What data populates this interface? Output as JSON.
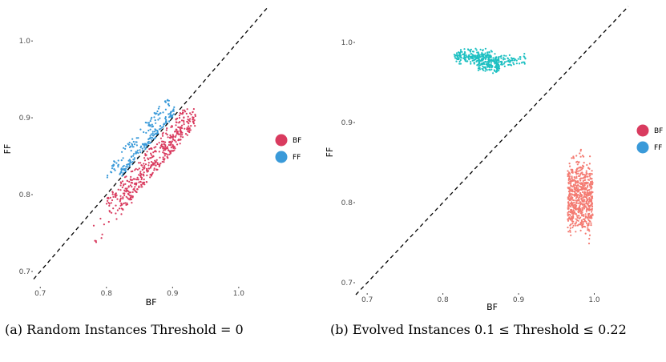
{
  "captions": {
    "a": "(a) Random Instances Threshold = 0",
    "b": "(b) Evolved Instances 0.1 ≤ Threshold ≤ 0.22"
  },
  "chart_data": [
    {
      "type": "scatter",
      "panel": "a",
      "xlabel": "BF",
      "ylabel": "FF",
      "xlim": [
        0.69,
        1.045
      ],
      "ylim": [
        0.678,
        1.045
      ],
      "xticks": [
        "0.7",
        "0.8",
        "0.9",
        "1.0"
      ],
      "yticks": [
        "0.7",
        "0.8",
        "0.9",
        "1.0"
      ],
      "reference_line": "y = x (dashed)",
      "grid": false,
      "legend": {
        "placement": "right",
        "entries": [
          {
            "label": "BF",
            "color": "#d93b5f"
          },
          {
            "label": "FF",
            "color": "#3a9ad9"
          }
        ]
      },
      "series": [
        {
          "name": "BF",
          "color": "#d93b5f",
          "pattern": "bands below diagonal",
          "clusters": [
            {
              "x": [
                0.82,
                0.935
              ],
              "y_offset": [
                -0.02,
                -0.045
              ],
              "count": 320
            },
            {
              "x": [
                0.8,
                0.925
              ],
              "y_offset": [
                -0.005,
                -0.02
              ],
              "count": 120
            },
            {
              "x": [
                0.78,
                0.84
              ],
              "y_offset": [
                -0.02,
                -0.05
              ],
              "count": 30
            }
          ]
        },
        {
          "name": "FF",
          "color": "#3a9ad9",
          "pattern": "bands along and above diagonal",
          "clusters": [
            {
              "x": [
                0.82,
                0.905
              ],
              "y_offset": [
                0.0,
                0.012
              ],
              "count": 160
            },
            {
              "x": [
                0.8,
                0.895
              ],
              "y_offset": [
                0.018,
                0.035
              ],
              "count": 90
            }
          ]
        }
      ]
    },
    {
      "type": "scatter",
      "panel": "b",
      "xlabel": "BF",
      "ylabel": "FF",
      "xlim": [
        0.685,
        1.045
      ],
      "ylim": [
        0.685,
        1.045
      ],
      "xticks": [
        "0.7",
        "0.8",
        "0.9",
        "1.0"
      ],
      "yticks": [
        "0.7",
        "0.8",
        "0.9",
        "1.0"
      ],
      "reference_line": "y = x (dashed)",
      "grid": false,
      "legend": {
        "placement": "right",
        "entries": [
          {
            "label": "BF",
            "color": "#d93b5f"
          },
          {
            "label": "FF",
            "color": "#3a9ad9"
          }
        ]
      },
      "series": [
        {
          "name": "FF",
          "color": "#1ec0c2",
          "clusters": [
            {
              "x": [
                0.815,
                0.865
              ],
              "y": [
                0.97,
                0.995
              ],
              "count": 180
            },
            {
              "x": [
                0.845,
                0.875
              ],
              "y": [
                0.955,
                0.99
              ],
              "count": 160
            },
            {
              "x": [
                0.87,
                0.91
              ],
              "y": [
                0.965,
                0.99
              ],
              "count": 70
            }
          ]
        },
        {
          "name": "BF",
          "color": "#f47b72",
          "clusters": [
            {
              "x": [
                0.965,
                0.998
              ],
              "y": [
                0.74,
                0.875
              ],
              "count": 650
            }
          ]
        }
      ]
    }
  ]
}
